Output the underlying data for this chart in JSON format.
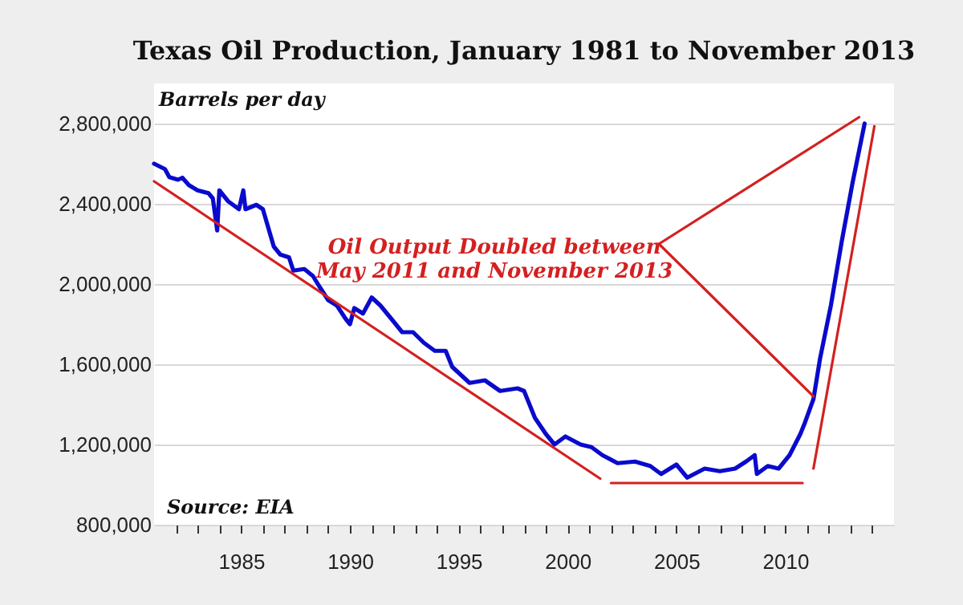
{
  "chart_data": {
    "type": "line",
    "title": "Texas Oil Production, January 1981 to November 2013",
    "ylabel": "Barrels per day",
    "annotations": [
      "Oil Output Doubled between\nMay 2011 and November 2013",
      "Source: EIA"
    ],
    "xlim": [
      1981,
      2015
    ],
    "ylim": [
      800000,
      3000000
    ],
    "xticks": [
      {
        "value": 1982,
        "label": null
      },
      {
        "value": 1983,
        "label": null
      },
      {
        "value": 1984,
        "label": null
      },
      1985,
      {
        "value": 1986,
        "label": null
      },
      {
        "value": 1987,
        "label": null
      },
      {
        "value": 1988,
        "label": null
      },
      {
        "value": 1989,
        "label": null
      },
      1990,
      {
        "value": 1991,
        "label": null
      },
      {
        "value": 1992,
        "label": null
      },
      {
        "value": 1993,
        "label": null
      },
      {
        "value": 1994,
        "label": null
      },
      1995,
      {
        "value": 1996,
        "label": null
      },
      {
        "value": 1997,
        "label": null
      },
      {
        "value": 1998,
        "label": null
      },
      {
        "value": 1999,
        "label": null
      },
      2000,
      {
        "value": 2001,
        "label": null
      },
      {
        "value": 2002,
        "label": null
      },
      {
        "value": 2003,
        "label": null
      },
      {
        "value": 2004,
        "label": null
      },
      2005,
      {
        "value": 2006,
        "label": null
      },
      {
        "value": 2007,
        "label": null
      },
      {
        "value": 2008,
        "label": null
      },
      {
        "value": 2009,
        "label": null
      },
      2010,
      {
        "value": 2011,
        "label": null
      },
      {
        "value": 2012,
        "label": null
      },
      {
        "value": 2013,
        "label": null
      },
      {
        "value": 2014,
        "label": null
      }
    ],
    "yticks": [
      {
        "value": 800000,
        "label": "800,000"
      },
      {
        "value": 1200000,
        "label": "1,200,000"
      },
      {
        "value": 1600000,
        "label": "1,600,000"
      },
      {
        "value": 2000000,
        "label": "2,000,000"
      },
      {
        "value": 2400000,
        "label": "2,400,000"
      },
      {
        "value": 2800000,
        "label": "2,800,000"
      }
    ],
    "grid": "y",
    "legend": false,
    "line_style": "solid",
    "marker": "none",
    "series": [
      {
        "color": "#0a0acc",
        "x": [
          1981.0,
          1981.5,
          1981.7,
          1982.1,
          1982.3,
          1982.6,
          1983.0,
          1983.5,
          1983.7,
          1983.9,
          1984.0,
          1984.4,
          1984.9,
          1985.1,
          1985.2,
          1985.7,
          1986.0,
          1986.5,
          1986.8,
          1987.2,
          1987.4,
          1987.9,
          1988.3,
          1988.6,
          1989.0,
          1989.4,
          1989.8,
          1990.0,
          1990.2,
          1990.6,
          1991.0,
          1991.4,
          1991.9,
          1992.4,
          1992.9,
          1993.4,
          1993.9,
          1994.4,
          1994.7,
          1995.5,
          1996.2,
          1996.9,
          1997.7,
          1998.0,
          1998.5,
          1999.0,
          1999.4,
          1999.9,
          2000.6,
          2001.1,
          2001.6,
          2002.3,
          2003.1,
          2003.8,
          2004.3,
          2005.0,
          2005.5,
          2006.3,
          2007.0,
          2007.7,
          2008.2,
          2008.6,
          2008.7,
          2009.2,
          2009.7,
          2010.2,
          2010.7,
          2010.9,
          2011.3,
          2011.6,
          2012.1,
          2012.6,
          2013.1,
          2013.5,
          2013.65
        ],
        "values": [
          2600000,
          2573000,
          2533000,
          2520000,
          2530000,
          2493000,
          2467000,
          2453000,
          2427000,
          2267000,
          2467000,
          2413000,
          2373000,
          2467000,
          2373000,
          2395000,
          2373000,
          2187000,
          2147000,
          2133000,
          2067000,
          2075000,
          2040000,
          1987000,
          1920000,
          1893000,
          1827000,
          1800000,
          1880000,
          1853000,
          1933000,
          1893000,
          1827000,
          1760000,
          1760000,
          1707000,
          1667000,
          1667000,
          1587000,
          1507000,
          1520000,
          1467000,
          1480000,
          1467000,
          1333000,
          1253000,
          1200000,
          1240000,
          1200000,
          1187000,
          1147000,
          1107000,
          1115000,
          1093000,
          1053000,
          1100000,
          1035000,
          1080000,
          1067000,
          1080000,
          1115000,
          1147000,
          1053000,
          1093000,
          1080000,
          1147000,
          1253000,
          1307000,
          1427000,
          1627000,
          1893000,
          2213000,
          2507000,
          2720000,
          2800000
        ]
      },
      {
        "color": "#d42020",
        "x": [
          1981.0,
          2001.5
        ],
        "values": [
          2512000,
          1030000
        ]
      },
      {
        "color": "#d42020",
        "x": [
          2002.0,
          2010.8
        ],
        "values": [
          1008000,
          1008000
        ]
      },
      {
        "color": "#d42020",
        "x": [
          2011.3,
          2014.1
        ],
        "values": [
          1080000,
          2787000
        ]
      },
      {
        "color": "#d42020",
        "x": [
          2004.2,
          2013.4
        ],
        "values": [
          2200000,
          2832000
        ]
      },
      {
        "color": "#d42020",
        "x": [
          2004.2,
          2011.3
        ],
        "values": [
          2200000,
          1440000
        ]
      }
    ]
  }
}
